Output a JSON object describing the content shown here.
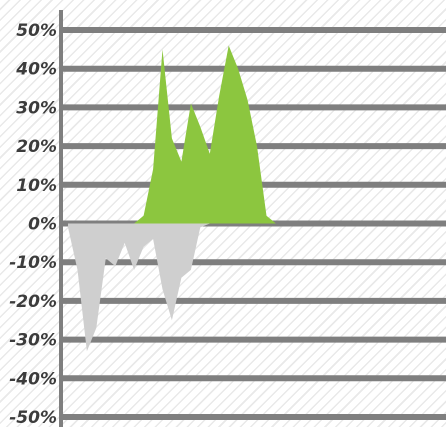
{
  "chart_data": {
    "type": "area",
    "title": "",
    "xlabel": "",
    "ylabel": "",
    "ylim": [
      -50,
      50
    ],
    "yticks": [
      "50%",
      "40%",
      "30%",
      "20%",
      "10%",
      "0%",
      "-10%",
      "-20%",
      "-30%",
      "-40%",
      "-50%"
    ],
    "grid": true,
    "legend": "none",
    "x": [
      0,
      1,
      2,
      3,
      4,
      5,
      6,
      7,
      8,
      9,
      10,
      11,
      12,
      13,
      14,
      15,
      16,
      17,
      18,
      19,
      20,
      21,
      22,
      23,
      24,
      25,
      26,
      27,
      28,
      29,
      30,
      31,
      32,
      33,
      34,
      35,
      36,
      37,
      38,
      39,
      40
    ],
    "series": [
      {
        "color": "#cfcfcf",
        "values": [
          -1,
          -12,
          -33,
          -27,
          -9,
          -11,
          -5,
          -12,
          -6,
          -4,
          -17,
          -25,
          -14,
          -12,
          -1,
          0,
          0,
          0,
          0,
          0,
          0,
          0,
          0,
          0,
          0,
          0,
          0,
          0,
          0,
          0,
          0,
          0,
          0,
          0,
          0,
          0,
          0,
          0,
          0,
          0,
          0
        ]
      },
      {
        "color": "#8cc63f",
        "values": [
          0,
          0,
          0,
          0,
          0,
          0,
          0,
          0,
          2,
          14,
          45,
          22,
          16,
          31,
          25,
          18,
          33,
          46,
          40,
          32,
          20,
          2,
          0,
          0,
          0,
          0,
          0,
          0,
          0,
          0,
          0,
          0,
          0,
          0,
          0,
          0,
          0,
          0,
          0,
          0,
          0
        ]
      },
      {
        "color": "#1fbb74",
        "values": [
          0,
          0,
          0,
          0,
          0,
          0,
          0,
          0,
          0,
          0,
          0,
          0,
          0,
          0,
          0,
          0,
          0,
          0,
          0,
          0,
          0,
          0,
          0,
          0,
          0,
          0,
          0,
          0,
          0,
          0,
          0,
          0,
          0,
          0,
          0,
          0,
          0,
          0,
          0,
          0,
          0
        ]
      },
      {
        "color": "#1fbb74",
        "values": [
          0,
          0,
          0,
          0,
          0,
          0,
          0,
          0,
          0,
          0,
          0,
          0,
          0,
          0,
          0,
          0,
          0,
          0,
          0,
          0,
          0,
          0,
          0,
          0,
          0,
          0,
          0,
          0,
          0,
          0,
          0,
          0,
          0,
          0,
          0,
          0,
          0,
          0,
          0,
          0,
          0
        ]
      }
    ],
    "colors": {
      "axis": "#7f7f7f",
      "grid": "#7f7f7f",
      "text": "#3c3c3c"
    }
  }
}
